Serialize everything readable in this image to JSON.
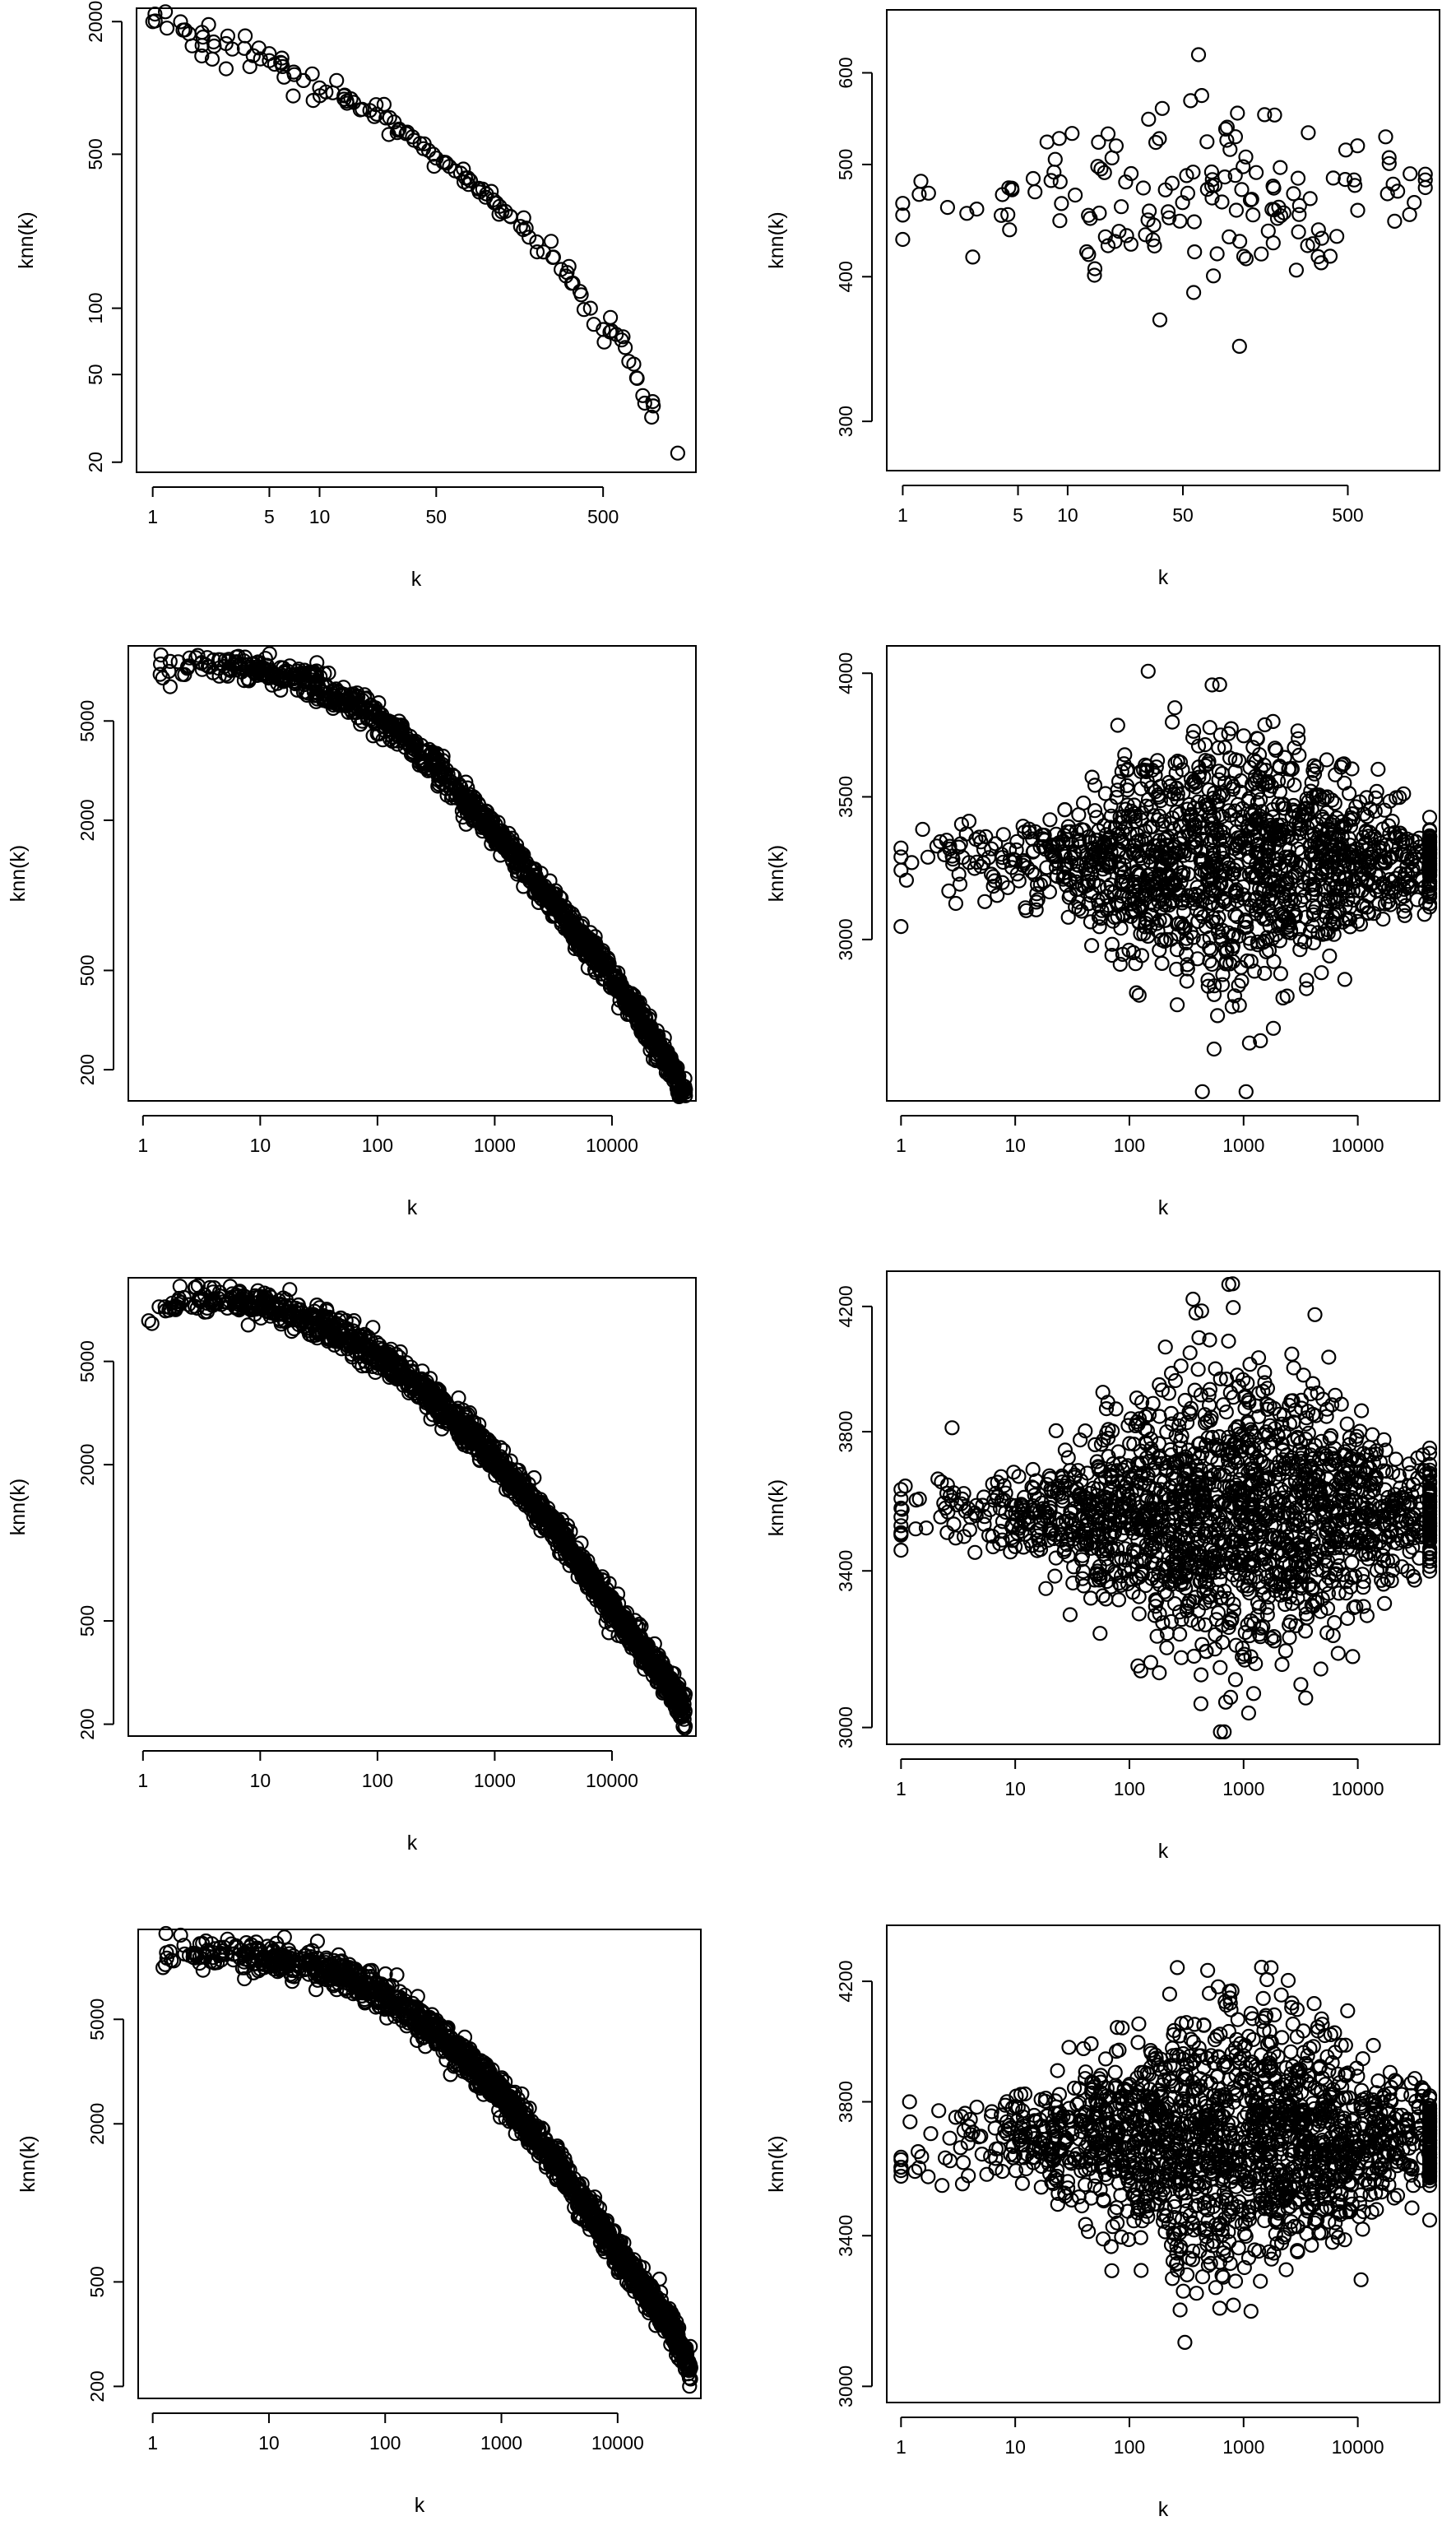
{
  "chart_data": [
    {
      "type": "scatter",
      "xlabel": "k",
      "ylabel": "knn(k)",
      "xscale": "log",
      "yscale": "log",
      "xlim": [
        0.8,
        1800
      ],
      "ylim": [
        18,
        2300
      ],
      "xticks": [
        1,
        5,
        10,
        50,
        500
      ],
      "xtick_labels": [
        "1",
        "5",
        "10",
        "50",
        "500"
      ],
      "yticks": [
        20,
        50,
        100,
        500,
        2000
      ],
      "ytick_labels": [
        "20",
        "50",
        "100",
        "500",
        "2000"
      ],
      "trend": "decreasing",
      "points": [
        [
          1,
          2000
        ],
        [
          2,
          1700
        ],
        [
          3,
          1500
        ],
        [
          4,
          1400
        ],
        [
          5,
          1330
        ],
        [
          6,
          1250
        ],
        [
          7,
          1180
        ],
        [
          8,
          1080
        ],
        [
          10,
          1000
        ],
        [
          12,
          950
        ],
        [
          14,
          920
        ],
        [
          16,
          860
        ],
        [
          18,
          800
        ],
        [
          20,
          790
        ],
        [
          22,
          760
        ],
        [
          25,
          730
        ],
        [
          28,
          700
        ],
        [
          30,
          650
        ],
        [
          33,
          620
        ],
        [
          36,
          600
        ],
        [
          40,
          560
        ],
        [
          42,
          530
        ],
        [
          45,
          520
        ],
        [
          48,
          500
        ],
        [
          50,
          480
        ],
        [
          55,
          460
        ],
        [
          60,
          440
        ],
        [
          65,
          420
        ],
        [
          70,
          410
        ],
        [
          75,
          390
        ],
        [
          80,
          380
        ],
        [
          90,
          350
        ],
        [
          100,
          330
        ],
        [
          110,
          310
        ],
        [
          120,
          290
        ],
        [
          130,
          275
        ],
        [
          140,
          260
        ],
        [
          160,
          235
        ],
        [
          180,
          210
        ],
        [
          200,
          200
        ],
        [
          220,
          180
        ],
        [
          250,
          170
        ],
        [
          280,
          150
        ],
        [
          300,
          140
        ],
        [
          330,
          130
        ],
        [
          370,
          115
        ],
        [
          420,
          100
        ],
        [
          500,
          80
        ],
        [
          550,
          78
        ],
        [
          600,
          76
        ],
        [
          800,
          48
        ],
        [
          1000,
          36
        ],
        [
          1400,
          22
        ]
      ],
      "n_points": 150
    },
    {
      "type": "scatter",
      "xlabel": "k",
      "ylabel": "knn(k)",
      "xscale": "log",
      "yscale": "log",
      "xlim": [
        0.8,
        1800
      ],
      "ylim": [
        272,
        680
      ],
      "xticks": [
        1,
        5,
        10,
        50,
        500
      ],
      "xtick_labels": [
        "1",
        "5",
        "10",
        "50",
        "500"
      ],
      "yticks": [
        300,
        400,
        500,
        600
      ],
      "ytick_labels": [
        "300",
        "400",
        "500",
        "600"
      ],
      "trend": "flat",
      "center": 470,
      "spread": 0.1,
      "n_points": 160
    },
    {
      "type": "scatter",
      "xlabel": "k",
      "ylabel": "knn(k)",
      "xscale": "log",
      "yscale": "log",
      "xlim": [
        0.75,
        52000
      ],
      "ylim": [
        150,
        10000
      ],
      "xticks": [
        1,
        10,
        100,
        1000,
        10000
      ],
      "xtick_labels": [
        "1",
        "10",
        "100",
        "1000",
        "10000"
      ],
      "yticks": [
        200,
        500,
        2000,
        5000
      ],
      "ytick_labels": [
        "200",
        "500",
        "2000",
        "5000"
      ],
      "trend": "decreasing",
      "curve": [
        [
          1,
          7600
        ],
        [
          2,
          8400
        ],
        [
          5,
          8500
        ],
        [
          10,
          8200
        ],
        [
          30,
          7000
        ],
        [
          100,
          5200
        ],
        [
          300,
          3400
        ],
        [
          1000,
          1800
        ],
        [
          3000,
          950
        ],
        [
          10000,
          470
        ],
        [
          30000,
          220
        ],
        [
          40000,
          160
        ]
      ],
      "n_points": 1200
    },
    {
      "type": "scatter",
      "xlabel": "k",
      "ylabel": "knn(k)",
      "xscale": "log",
      "yscale": "log",
      "xlim": [
        0.75,
        52000
      ],
      "ylim": [
        2520,
        4120
      ],
      "xticks": [
        1,
        10,
        100,
        1000,
        10000
      ],
      "xtick_labels": [
        "1",
        "10",
        "100",
        "1000",
        "10000"
      ],
      "yticks": [
        3000,
        3500,
        4000
      ],
      "ytick_labels": [
        "3000",
        "3500",
        "4000"
      ],
      "trend": "flat",
      "center": 3260,
      "spread": 0.06,
      "n_points": 1500
    },
    {
      "type": "scatter",
      "xlabel": "k",
      "ylabel": "knn(k)",
      "xscale": "log",
      "yscale": "log",
      "xlim": [
        0.75,
        52000
      ],
      "ylim": [
        180,
        10500
      ],
      "xticks": [
        1,
        10,
        100,
        1000,
        10000
      ],
      "xtick_labels": [
        "1",
        "10",
        "100",
        "1000",
        "10000"
      ],
      "yticks": [
        200,
        500,
        2000,
        5000
      ],
      "ytick_labels": [
        "200",
        "500",
        "2000",
        "5000"
      ],
      "trend": "decreasing",
      "curve": [
        [
          1,
          7200
        ],
        [
          2,
          8500
        ],
        [
          5,
          8600
        ],
        [
          10,
          8300
        ],
        [
          30,
          7100
        ],
        [
          100,
          5300
        ],
        [
          300,
          3600
        ],
        [
          1000,
          2100
        ],
        [
          3000,
          1200
        ],
        [
          10000,
          560
        ],
        [
          30000,
          290
        ],
        [
          45000,
          210
        ]
      ],
      "n_points": 1500
    },
    {
      "type": "scatter",
      "xlabel": "k",
      "ylabel": "knn(k)",
      "xscale": "log",
      "yscale": "log",
      "xlim": [
        0.75,
        52000
      ],
      "ylim": [
        2960,
        4320
      ],
      "xticks": [
        1,
        10,
        100,
        1000,
        10000
      ],
      "xtick_labels": [
        "1",
        "10",
        "100",
        "1000",
        "10000"
      ],
      "yticks": [
        3000,
        3400,
        3800,
        4200
      ],
      "ytick_labels": [
        "3000",
        "3400",
        "3800",
        "4200"
      ],
      "trend": "flat",
      "center": 3560,
      "spread": 0.05,
      "n_points": 1800
    },
    {
      "type": "scatter",
      "xlabel": "k",
      "ylabel": "knn(k)",
      "xscale": "log",
      "yscale": "log",
      "xlim": [
        0.75,
        52000
      ],
      "ylim": [
        180,
        11000
      ],
      "xticks": [
        1,
        10,
        100,
        1000,
        10000
      ],
      "xtick_labels": [
        "1",
        "10",
        "100",
        "1000",
        "10000"
      ],
      "yticks": [
        200,
        500,
        2000,
        5000
      ],
      "ytick_labels": [
        "200",
        "500",
        "2000",
        "5000"
      ],
      "trend": "decreasing",
      "curve": [
        [
          1,
          8600
        ],
        [
          2,
          8700
        ],
        [
          5,
          8700
        ],
        [
          10,
          8500
        ],
        [
          30,
          7800
        ],
        [
          100,
          6200
        ],
        [
          300,
          4300
        ],
        [
          1000,
          2600
        ],
        [
          3000,
          1400
        ],
        [
          10000,
          650
        ],
        [
          30000,
          330
        ],
        [
          45000,
          220
        ]
      ],
      "n_points": 1600
    },
    {
      "type": "scatter",
      "xlabel": "k",
      "ylabel": "knn(k)",
      "xscale": "log",
      "yscale": "log",
      "xlim": [
        0.75,
        52000
      ],
      "ylim": [
        2960,
        4400
      ],
      "xticks": [
        1,
        10,
        100,
        1000,
        10000
      ],
      "xtick_labels": [
        "1",
        "10",
        "100",
        "1000",
        "10000"
      ],
      "yticks": [
        3000,
        3400,
        3800,
        4200
      ],
      "ytick_labels": [
        "3000",
        "3400",
        "3800",
        "4200"
      ],
      "trend": "flat",
      "center": 3680,
      "spread": 0.05,
      "n_points": 1800
    }
  ]
}
